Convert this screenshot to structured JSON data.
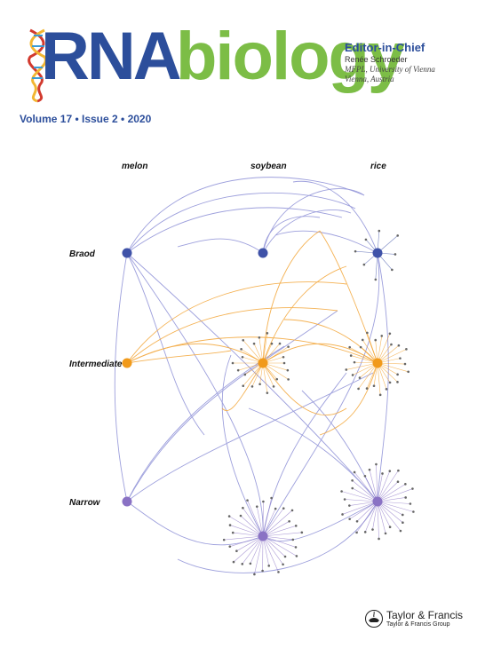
{
  "journal": {
    "title_part1": "RNA",
    "title_part2": "biology",
    "volume_line": "Volume 17 • Issue 2 • 2020"
  },
  "editor": {
    "role": "Editor-in-Chief",
    "name": "Renée Schroeder",
    "affiliation_line1": "MFPL, University of Vienna",
    "affiliation_line2": "Vienna, Austria"
  },
  "figure": {
    "column_labels": [
      "melon",
      "soybean",
      "rice"
    ],
    "row_labels": [
      "Braod",
      "Intermediate",
      "Narrow"
    ]
  },
  "publisher": {
    "name": "Taylor & Francis",
    "group": "Taylor & Francis Group"
  },
  "colors": {
    "brand_blue": "#2c4e9b",
    "brand_green": "#7cbd46",
    "edge_blue": "#8c8fd6",
    "edge_orange": "#f3a940",
    "node_broad": "#3f52a8",
    "node_intermediate": "#f19a1b",
    "node_narrow": "#8a72c4"
  }
}
